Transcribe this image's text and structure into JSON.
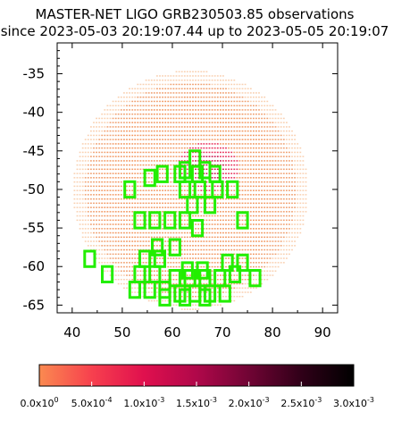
{
  "chart_data": {
    "type": "heatmap",
    "title_line1": "MASTER-NET LIGO GRB230503.85 observations",
    "title_line2": "since 2023-05-03 20:19:07.44 up to 2023-05-05 20:19:07",
    "xlim": [
      37,
      93
    ],
    "ylim": [
      -66,
      -31
    ],
    "x_ticks": [
      "40",
      "50",
      "60",
      "70",
      "80",
      "90"
    ],
    "x_tick_values": [
      40,
      50,
      60,
      70,
      80,
      90
    ],
    "y_ticks": [
      "-35",
      "-40",
      "-45",
      "-50",
      "-55",
      "-60",
      "-65"
    ],
    "y_tick_values": [
      -35,
      -40,
      -45,
      -50,
      -55,
      -60,
      -65
    ],
    "grid": false,
    "probability_region": {
      "description": "skymap probability dots forming an ellipse",
      "center": [
        63.5,
        -50
      ],
      "semi_axis_x": 23.5,
      "semi_axis_y": 15.5,
      "peak": [
        67,
        -47
      ],
      "colors": {
        "outer": "#f9d0b0",
        "mid": "#f0a070",
        "main": "#f29760",
        "high": "#e8305a",
        "peak": "#c8104a"
      }
    },
    "observed_fields_color": "#22ee00",
    "observed_fields": [
      [
        64.5,
        -46
      ],
      [
        62.5,
        -47.5
      ],
      [
        66.5,
        -47.5
      ],
      [
        58,
        -48
      ],
      [
        61.5,
        -48
      ],
      [
        65,
        -48
      ],
      [
        68.5,
        -48
      ],
      [
        55.5,
        -48.5
      ],
      [
        51.5,
        -50
      ],
      [
        62.5,
        -50
      ],
      [
        65.5,
        -50
      ],
      [
        69,
        -50
      ],
      [
        72,
        -50
      ],
      [
        64,
        -52
      ],
      [
        67.5,
        -52
      ],
      [
        53.5,
        -54
      ],
      [
        56.5,
        -54
      ],
      [
        59.5,
        -54
      ],
      [
        62.5,
        -54
      ],
      [
        74,
        -54
      ],
      [
        65,
        -55
      ],
      [
        57,
        -57.5
      ],
      [
        60.5,
        -57.5
      ],
      [
        43.5,
        -59
      ],
      [
        54.5,
        -59
      ],
      [
        57.5,
        -59
      ],
      [
        71,
        -59.5
      ],
      [
        74,
        -59.5
      ],
      [
        63,
        -60.5
      ],
      [
        66,
        -60.5
      ],
      [
        47,
        -61
      ],
      [
        53.5,
        -61
      ],
      [
        56.5,
        -61
      ],
      [
        60.5,
        -61.5
      ],
      [
        63.5,
        -61.5
      ],
      [
        66.5,
        -61.5
      ],
      [
        69.5,
        -61.5
      ],
      [
        72.5,
        -61
      ],
      [
        76.5,
        -61.5
      ],
      [
        52.5,
        -63
      ],
      [
        55.5,
        -63
      ],
      [
        58.5,
        -63
      ],
      [
        61.5,
        -63.5
      ],
      [
        64.5,
        -63.5
      ],
      [
        67.5,
        -63.5
      ],
      [
        70.5,
        -63.5
      ],
      [
        58.5,
        -64
      ],
      [
        62.5,
        -64
      ],
      [
        66.5,
        -64
      ]
    ],
    "colorbar": {
      "min": 0,
      "max": 0.003,
      "stops": [
        "#fa8a50",
        "#f7404e",
        "#e0104e",
        "#b0084a",
        "#700434",
        "#300018",
        "#000000"
      ],
      "tick_values": [
        0,
        0.0005,
        0.001,
        0.0015,
        0.002,
        0.0025,
        0.003
      ],
      "tick_labels": [
        {
          "mantissa": "0.0x10",
          "exp": "0"
        },
        {
          "mantissa": "5.0x10",
          "exp": "-4"
        },
        {
          "mantissa": "1.0x10",
          "exp": "-3"
        },
        {
          "mantissa": "1.5x10",
          "exp": "-3"
        },
        {
          "mantissa": "2.0x10",
          "exp": "-3"
        },
        {
          "mantissa": "2.5x10",
          "exp": "-3"
        },
        {
          "mantissa": "3.0x10",
          "exp": "-3"
        }
      ]
    }
  }
}
